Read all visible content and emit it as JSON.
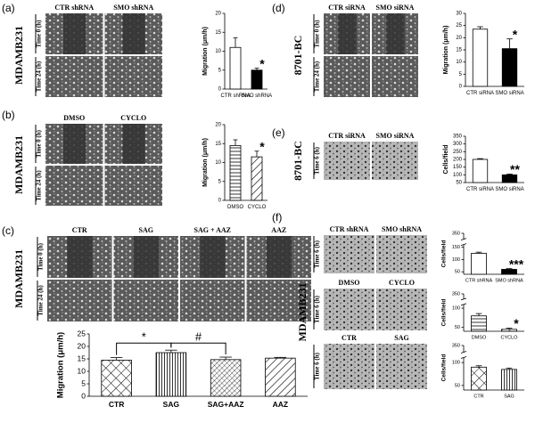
{
  "panels": [
    {
      "letter": "(a)",
      "cell_line": "MDAMB231",
      "groups": [
        {
          "columns": [
            "CTR shRNA",
            "SMO shRNA"
          ],
          "rows": [
            "Time 0 (h)",
            "Time 24 (h)"
          ]
        }
      ]
    },
    {
      "letter": "(b)",
      "cell_line": "MDAMB231",
      "groups": [
        {
          "columns": [
            "DMSO",
            "CYCLO"
          ],
          "rows": [
            "Time 0 (h)",
            "Time 24 (h)"
          ]
        }
      ]
    },
    {
      "letter": "(c)",
      "cell_line": "MDAMB231",
      "groups": [
        {
          "columns": [
            "CTR",
            "SAG",
            "SAG + AAZ",
            "AAZ"
          ],
          "rows": [
            "Time 0 (h)",
            "Time 24 (h)"
          ]
        }
      ]
    },
    {
      "letter": "(d)",
      "cell_line": "8701-BC",
      "groups": [
        {
          "columns": [
            "CTR siRNA",
            "SMO siRNA"
          ],
          "rows": [
            "Time 0 (h)",
            "Time 24 (h)"
          ]
        }
      ]
    },
    {
      "letter": "(e)",
      "cell_line": "8701-BC",
      "groups": [
        {
          "columns": [
            "CTR siRNA",
            "SMO siRNA"
          ],
          "rows": [
            "Time 6 (h)"
          ]
        }
      ]
    },
    {
      "letter": "(f)",
      "cell_line": "MDAMB231",
      "groups": [
        {
          "columns": [
            "CTR shRNA",
            "SMO shRNA"
          ],
          "rows": [
            "Time 6 (h)"
          ]
        },
        {
          "columns": [
            "DMSO",
            "CYCLO"
          ],
          "rows": [
            "Time 6 (h)"
          ]
        },
        {
          "columns": [
            "CTR",
            "SAG"
          ],
          "rows": [
            "Time 6 (h)"
          ]
        }
      ]
    }
  ],
  "chart_data": [
    {
      "type": "bar",
      "y_label": "Migration (μm/h)",
      "categories": [
        "CTR shRNA",
        "SMO shRNA"
      ],
      "values": [
        11,
        5
      ],
      "errors": [
        2.5,
        0.5
      ],
      "fills": [
        "white",
        "black"
      ],
      "ylim": [
        0,
        20
      ],
      "yticks": [
        0,
        5,
        10,
        15,
        20
      ],
      "annotations": [
        "*"
      ]
    },
    {
      "type": "bar",
      "y_label": "Migration (μm/h)",
      "categories": [
        "DMSO",
        "CYCLO"
      ],
      "values": [
        14.5,
        11.5
      ],
      "errors": [
        1.5,
        1.5
      ],
      "fills": [
        "hlines",
        "diag"
      ],
      "ylim": [
        0,
        20
      ],
      "yticks": [
        0,
        5,
        10,
        15,
        20
      ],
      "annotations": [
        "*"
      ]
    },
    {
      "type": "bar",
      "y_label": "Migration (μm/h)",
      "categories": [
        "CTR",
        "SAG",
        "SAG+AAZ",
        "AAZ"
      ],
      "values": [
        14.5,
        17.5,
        14.7,
        15.3
      ],
      "errors": [
        1,
        1,
        1,
        0.3
      ],
      "fills": [
        "cross",
        "vlines",
        "crossdiag",
        "diag"
      ],
      "ylim": [
        0,
        25
      ],
      "yticks": [
        0,
        5,
        10,
        15,
        20,
        25
      ],
      "annotations": [
        "*",
        "#"
      ]
    },
    {
      "type": "bar",
      "y_label": "Migration (μm/h)",
      "categories": [
        "CTR siRNA",
        "SMO siRNA"
      ],
      "values": [
        23.5,
        15.5
      ],
      "errors": [
        1,
        4
      ],
      "fills": [
        "white",
        "black"
      ],
      "ylim": [
        0,
        30
      ],
      "yticks": [
        0,
        5,
        10,
        15,
        20,
        25,
        30
      ],
      "annotations": [
        "*"
      ]
    },
    {
      "type": "bar",
      "y_label": "Cells/field",
      "categories": [
        "CTR siRNA",
        "SMO siRNA"
      ],
      "values": [
        200,
        100
      ],
      "errors": [
        5,
        5
      ],
      "fills": [
        "white",
        "black"
      ],
      "ylim": [
        50,
        350
      ],
      "yticks": [
        50,
        100,
        150,
        200,
        250,
        300,
        350
      ],
      "annotations": [
        "**"
      ]
    },
    {
      "type": "bar",
      "y_label": "Cells/field",
      "categories": [
        "CTR shRNA",
        "SMO shRNA"
      ],
      "values": [
        125,
        60
      ],
      "errors": [
        5,
        3
      ],
      "fills": [
        "white",
        "black"
      ],
      "ylim": [
        40,
        350
      ],
      "axis_break": [
        160,
        330
      ],
      "yticks": [
        50,
        100,
        150,
        350
      ],
      "annotations": [
        "***"
      ]
    },
    {
      "type": "bar",
      "y_label": "Cells/field",
      "categories": [
        "DMSO",
        "CYCLO"
      ],
      "values": [
        80,
        45
      ],
      "errors": [
        6,
        3
      ],
      "fills": [
        "hlines",
        "diag"
      ],
      "ylim": [
        40,
        350
      ],
      "axis_break": [
        110,
        330
      ],
      "yticks": [
        50,
        100,
        350
      ],
      "annotations": [
        "*"
      ]
    },
    {
      "type": "bar",
      "y_label": "Cells/field",
      "categories": [
        "CTR",
        "SAG"
      ],
      "values": [
        90,
        85
      ],
      "errors": [
        3,
        3
      ],
      "fills": [
        "cross",
        "vlines"
      ],
      "ylim": [
        40,
        350
      ],
      "axis_break": [
        110,
        330
      ],
      "yticks": [
        50,
        100,
        350
      ],
      "annotations": []
    }
  ]
}
